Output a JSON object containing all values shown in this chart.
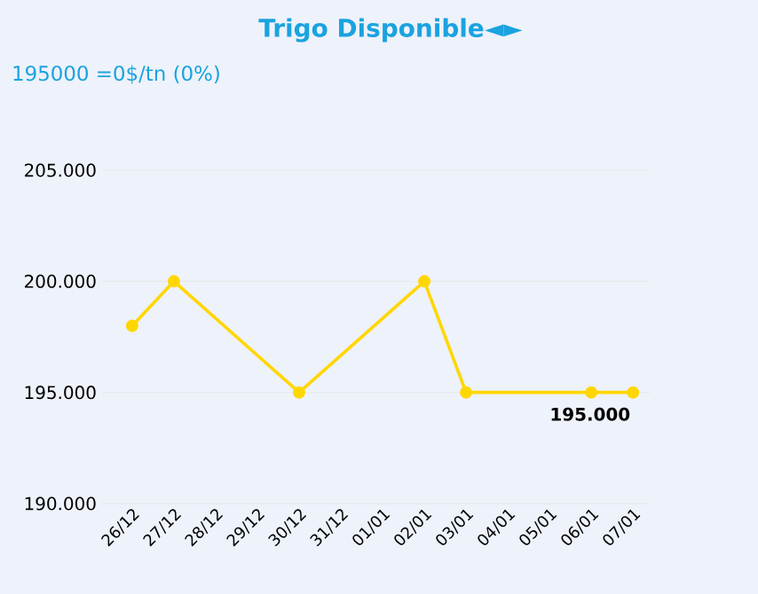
{
  "chart_data": {
    "type": "line",
    "title": "Trigo Disponible◄►",
    "subtitle": "195000 =0$/tn (0%)",
    "categories": [
      "26/12",
      "27/12",
      "28/12",
      "29/12",
      "30/12",
      "31/12",
      "01/01",
      "02/01",
      "03/01",
      "04/01",
      "05/01",
      "06/01",
      "07/01"
    ],
    "series": [
      {
        "color": "#ffd700",
        "values": [
          198000,
          200000,
          null,
          null,
          195000,
          null,
          null,
          200000,
          195000,
          null,
          null,
          195000,
          195000
        ]
      }
    ],
    "ylim": [
      190000,
      205000
    ],
    "yticks": [
      {
        "value": 190000,
        "label": "190.000"
      },
      {
        "value": 195000,
        "label": "195.000"
      },
      {
        "value": 200000,
        "label": "200.000"
      },
      {
        "value": 205000,
        "label": "205.000"
      }
    ],
    "annotations": [
      {
        "text": "195.000",
        "x": "07/01",
        "y": 195000
      }
    ],
    "grid": "y",
    "marker": "circle",
    "line_style": "solid"
  }
}
